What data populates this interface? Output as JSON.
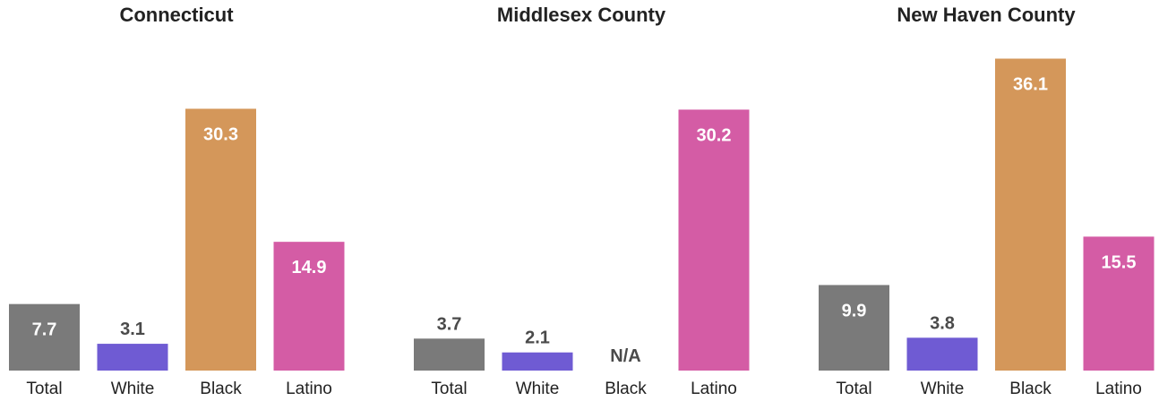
{
  "colors": {
    "Total": "#7a7a7a",
    "White": "#6f5bd3",
    "Black": "#d4975a",
    "Latino": "#d45ca5",
    "label_inside": "#ffffff",
    "label_outside": "#4a4a4a",
    "axis_label": "#222222"
  },
  "chart_data": [
    {
      "type": "bar",
      "title": "Connecticut",
      "categories": [
        "Total",
        "White",
        "Black",
        "Latino"
      ],
      "values": [
        7.7,
        3.1,
        30.3,
        14.9
      ],
      "value_labels": [
        "7.7",
        "3.1",
        "30.3",
        "14.9"
      ],
      "ylim": [
        0,
        37.5
      ],
      "grid": false,
      "xlabel": "",
      "ylabel": ""
    },
    {
      "type": "bar",
      "title": "Middlesex County",
      "categories": [
        "Total",
        "White",
        "Black",
        "Latino"
      ],
      "values": [
        3.7,
        2.1,
        null,
        30.2
      ],
      "value_labels": [
        "3.7",
        "2.1",
        "N/A",
        "30.2"
      ],
      "ylim": [
        0,
        37.5
      ],
      "grid": false,
      "xlabel": "",
      "ylabel": ""
    },
    {
      "type": "bar",
      "title": "New Haven County",
      "categories": [
        "Total",
        "White",
        "Black",
        "Latino"
      ],
      "values": [
        9.9,
        3.8,
        36.1,
        15.5
      ],
      "value_labels": [
        "9.9",
        "3.8",
        "36.1",
        "15.5"
      ],
      "ylim": [
        0,
        37.5
      ],
      "grid": false,
      "xlabel": "",
      "ylabel": ""
    }
  ]
}
